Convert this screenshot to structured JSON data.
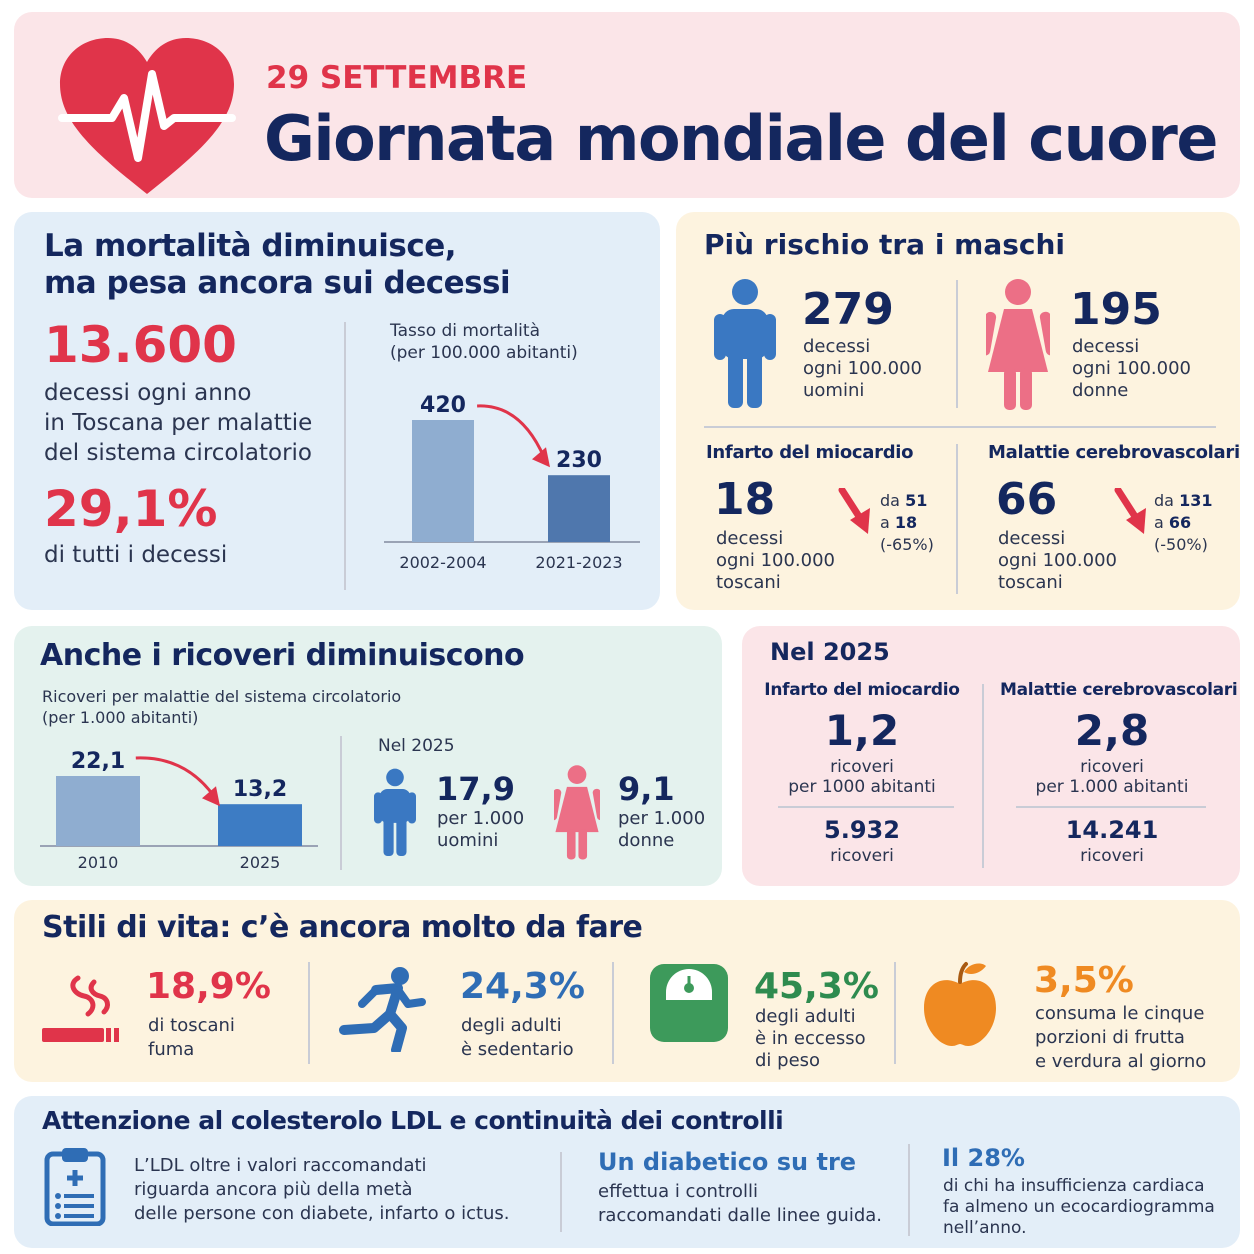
{
  "header": {
    "date": "29 SETTEMBRE",
    "title": "Giornata mondiale del cuore"
  },
  "mortality": {
    "heading_line1": "La mortalità diminuisce,",
    "heading_line2": "ma pesa ancora sui decessi",
    "deaths_value": "13.600",
    "deaths_line1": "decessi ogni anno",
    "deaths_line2": "in Toscana per malattie",
    "deaths_line3": "del sistema circolatorio",
    "share_value": "29,1%",
    "share_label": "di tutti i decessi",
    "chart_title_line1": "Tasso di mortalità",
    "chart_title_line2": "(per 100.000 abitanti)"
  },
  "males_risk": {
    "heading": "Più rischio tra i maschi",
    "men_value": "279",
    "men_line1": "decessi",
    "men_line2": "ogni 100.000",
    "men_line3": "uomini",
    "women_value": "195",
    "women_line1": "decessi",
    "women_line2": "ogni 100.000",
    "women_line3": "donne",
    "infarto_title": "Infarto del miocardio",
    "infarto_value": "18",
    "infarto_line1": "decessi",
    "infarto_line2": "ogni 100.000",
    "infarto_line3": "toscani",
    "infarto_from_prefix": "da",
    "infarto_from": "51",
    "infarto_to_prefix": "a",
    "infarto_to": "18",
    "infarto_change": "(-65%)",
    "cerebro_title": "Malattie cerebrovascolari",
    "cerebro_value": "66",
    "cerebro_line1": "decessi",
    "cerebro_line2": "ogni 100.000",
    "cerebro_line3": "toscani",
    "cerebro_from_prefix": "da",
    "cerebro_from": "131",
    "cerebro_to_prefix": "a",
    "cerebro_to": "66",
    "cerebro_change": "(-50%)"
  },
  "admissions": {
    "heading": "Anche i ricoveri diminuiscono",
    "chart_title_line1": "Ricoveri per malattie del sistema circolatorio",
    "chart_title_line2": "(per 1.000 abitanti)",
    "year_label": "Nel 2025",
    "men_value": "17,9",
    "men_line1": "per 1.000",
    "men_line2": "uomini",
    "women_value": "9,1",
    "women_line1": "per 1.000",
    "women_line2": "donne"
  },
  "year2025": {
    "heading": "Nel 2025",
    "infarto_title": "Infarto del miocardio",
    "infarto_value": "1,2",
    "infarto_line1": "ricoveri",
    "infarto_line2": "per 1000 abitanti",
    "infarto_total": "5.932",
    "infarto_total_label": "ricoveri",
    "cerebro_title": "Malattie cerebrovascolari",
    "cerebro_value": "2,8",
    "cerebro_line1": "ricoveri",
    "cerebro_line2": "per 1.000 abitanti",
    "cerebro_total": "14.241",
    "cerebro_total_label": "ricoveri"
  },
  "lifestyle": {
    "heading": "Stili di vita: c’è ancora molto da fare",
    "smoke_value": "18,9%",
    "smoke_line1": "di toscani",
    "smoke_line2": "fuma",
    "sedentary_value": "24,3%",
    "sedentary_line1": "degli adulti",
    "sedentary_line2": "è sedentario",
    "weight_value": "45,3%",
    "weight_line1": "degli adulti",
    "weight_line2": "è in eccesso",
    "weight_line3": "di peso",
    "fruit_value": "3,5%",
    "fruit_line1": "consuma le cinque",
    "fruit_line2": "porzioni di frutta",
    "fruit_line3": "e verdura al giorno"
  },
  "cholesterol": {
    "heading": "Attenzione al colesterolo LDL e continuità dei controlli",
    "ldl_line1": "L’LDL oltre i valori raccomandati",
    "ldl_line2": "riguarda ancora più della metà",
    "ldl_line3": "delle persone con diabete, infarto o ictus.",
    "diab_title": "Un diabetico su tre",
    "diab_line1": "effettua i controlli",
    "diab_line2": "raccomandati dalle linee guida.",
    "hf_title": "Il 28%",
    "hf_line1": "di chi ha insufficienza cardiaca",
    "hf_line2": "fa almeno un ecocardiogramma",
    "hf_line3": "nell’anno."
  },
  "chart_data": [
    {
      "type": "bar",
      "title": "Tasso di mortalità",
      "subtitle": "(per 100.000 abitanti)",
      "categories": [
        "2002-2004",
        "2021-2023"
      ],
      "values": [
        420,
        230
      ],
      "value_labels": [
        "420",
        "230"
      ],
      "ylim": [
        0,
        420
      ],
      "colors": [
        "#8fadd0",
        "#4f77ad"
      ]
    },
    {
      "type": "bar",
      "title": "Ricoveri per malattie del sistema circolatorio",
      "subtitle": "(per 1.000 abitanti)",
      "categories": [
        "2010",
        "2025"
      ],
      "values": [
        22.1,
        13.2
      ],
      "value_labels": [
        "22,1",
        "13,2"
      ],
      "ylim": [
        0,
        22.1
      ],
      "colors": [
        "#8fadd0",
        "#3d7cc4"
      ]
    }
  ],
  "colors": {
    "header_bg": "#fbe5e8",
    "blue_panel_bg": "#e3eef8",
    "yellow_panel_bg": "#fdf3df",
    "green_panel_bg": "#e4f2ee",
    "pink_panel_bg": "#fbe5e8",
    "accent_red": "#e0344a",
    "navy": "#14275e"
  },
  "icons": [
    "heart-pulse-icon",
    "man-icon",
    "woman-icon",
    "down-arrow-icon",
    "cigarette-icon",
    "running-icon",
    "scale-icon",
    "apple-icon",
    "clipboard-icon"
  ]
}
